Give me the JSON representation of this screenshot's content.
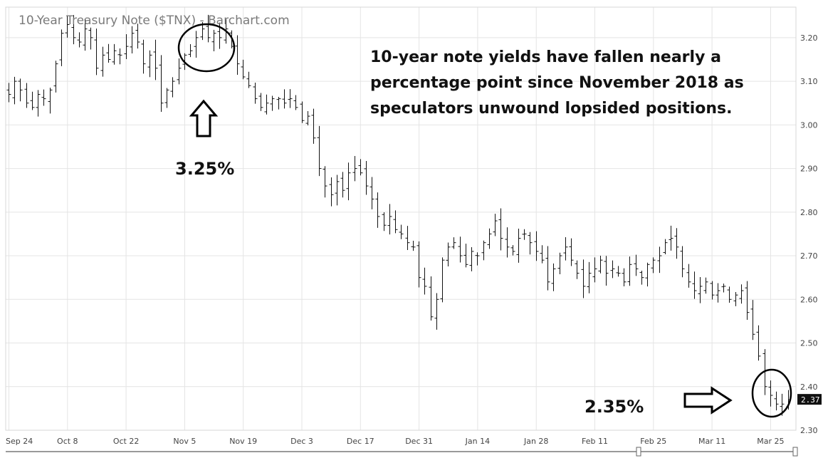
{
  "chart_data": {
    "type": "ohlc",
    "title": "10-Year Treasury Note ($TNX) - Barchart.com",
    "ylim": [
      2.3,
      3.27
    ],
    "y_ticks": [
      "3.20",
      "3.10",
      "3.00",
      "2.90",
      "2.80",
      "2.70",
      "2.60",
      "2.50",
      "2.40",
      "2.30"
    ],
    "x_ticks": [
      {
        "label": "Sep 24",
        "i": 0
      },
      {
        "label": "Oct 8",
        "i": 10
      },
      {
        "label": "Oct 22",
        "i": 20
      },
      {
        "label": "Nov 5",
        "i": 30
      },
      {
        "label": "Nov 19",
        "i": 40
      },
      {
        "label": "Dec 3",
        "i": 50
      },
      {
        "label": "Dec 17",
        "i": 60
      },
      {
        "label": "Dec 31",
        "i": 70
      },
      {
        "label": "Jan 14",
        "i": 80
      },
      {
        "label": "Jan 28",
        "i": 90
      },
      {
        "label": "Feb 11",
        "i": 100
      },
      {
        "label": "Feb 25",
        "i": 110
      },
      {
        "label": "Mar 11",
        "i": 120
      },
      {
        "label": "Mar 25",
        "i": 130
      }
    ],
    "last_value": "2.37",
    "closes": [
      3.07,
      3.1,
      3.08,
      3.05,
      3.04,
      3.07,
      3.06,
      3.08,
      3.14,
      3.21,
      3.23,
      3.2,
      3.19,
      3.22,
      3.2,
      3.13,
      3.16,
      3.15,
      3.17,
      3.16,
      3.18,
      3.21,
      3.19,
      3.14,
      3.16,
      3.13,
      3.05,
      3.08,
      3.1,
      3.13,
      3.16,
      3.17,
      3.2,
      3.22,
      3.2,
      3.21,
      3.2,
      3.22,
      3.18,
      3.14,
      3.11,
      3.09,
      3.06,
      3.04,
      3.05,
      3.06,
      3.06,
      3.05,
      3.06,
      3.04,
      3.01,
      3.02,
      2.97,
      2.9,
      2.86,
      2.84,
      2.87,
      2.85,
      2.89,
      2.9,
      2.89,
      2.86,
      2.83,
      2.79,
      2.77,
      2.79,
      2.76,
      2.75,
      2.73,
      2.72,
      2.65,
      2.63,
      2.56,
      2.6,
      2.69,
      2.72,
      2.73,
      2.7,
      2.68,
      2.71,
      2.7,
      2.73,
      2.75,
      2.78,
      2.74,
      2.72,
      2.71,
      2.74,
      2.75,
      2.73,
      2.71,
      2.69,
      2.64,
      2.67,
      2.7,
      2.72,
      2.69,
      2.66,
      2.63,
      2.66,
      2.67,
      2.69,
      2.66,
      2.67,
      2.66,
      2.64,
      2.68,
      2.67,
      2.65,
      2.68,
      2.69,
      2.7,
      2.73,
      2.74,
      2.72,
      2.67,
      2.64,
      2.62,
      2.63,
      2.64,
      2.61,
      2.62,
      2.63,
      2.6,
      2.61,
      2.62,
      2.57,
      2.52,
      2.47,
      2.4,
      2.38,
      2.36,
      2.36,
      2.37
    ],
    "annotations": [
      {
        "text": "3.25%"
      },
      {
        "text": "2.35%"
      }
    ],
    "note_lines": [
      "10-year note yields have fallen nearly a",
      "percentage point since November 2018 as",
      "speculators unwound lopsided positions."
    ]
  }
}
